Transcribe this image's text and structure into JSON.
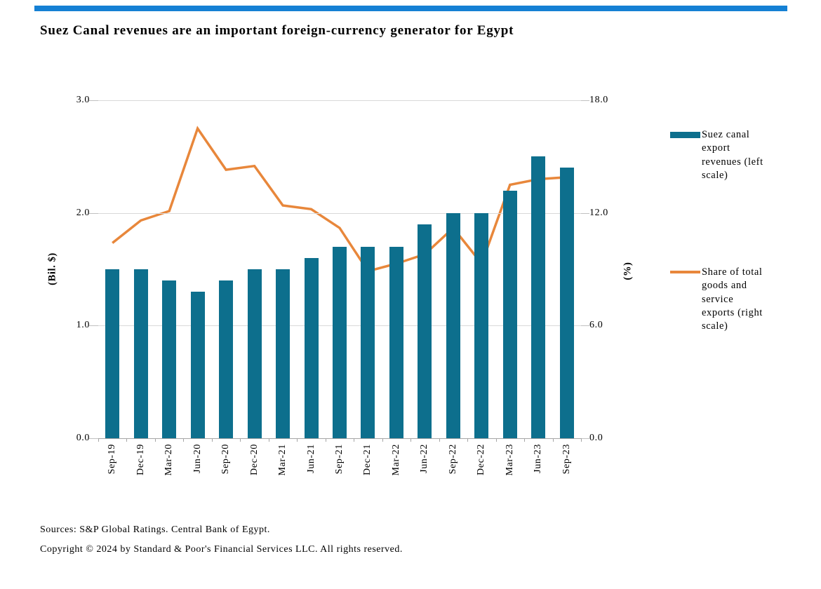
{
  "brand": {
    "banner_color": "#1580d4",
    "bar_color": "#0d6f8d",
    "line_color": "#e8873b"
  },
  "title": "Suez Canal revenues are an important foreign-currency generator for Egypt",
  "chart_data": {
    "type": "bar",
    "subtype": "bar-and-line-dual-axis",
    "categories": [
      "Sep-19",
      "Dec-19",
      "Mar-20",
      "Jun-20",
      "Sep-20",
      "Dec-20",
      "Mar-21",
      "Jun-21",
      "Sep-21",
      "Dec-21",
      "Mar-22",
      "Jun-22",
      "Sep-22",
      "Dec-22",
      "Mar-23",
      "Jun-23",
      "Sep-23"
    ],
    "series": [
      {
        "name": "Suez canal export revenues (left scale)",
        "type": "bar",
        "axis": "left",
        "color": "#0d6f8d",
        "values": [
          1.5,
          1.5,
          1.4,
          1.3,
          1.4,
          1.5,
          1.5,
          1.6,
          1.7,
          1.7,
          1.7,
          1.9,
          2.0,
          2.0,
          2.2,
          2.5,
          2.4
        ]
      },
      {
        "name": "Share of total goods and service exports (right scale)",
        "type": "line",
        "axis": "right",
        "color": "#e8873b",
        "values": [
          10.4,
          11.6,
          12.1,
          16.5,
          14.3,
          14.5,
          12.4,
          12.2,
          11.2,
          8.9,
          9.3,
          9.8,
          11.2,
          9.3,
          13.5,
          13.8,
          13.9
        ]
      }
    ],
    "left_axis": {
      "label": "(Bil. $)",
      "min": 0,
      "max": 3,
      "ticks": [
        "0.0",
        "1.0",
        "2.0",
        "3.0"
      ]
    },
    "right_axis": {
      "label": "(%)",
      "min": 0,
      "max": 18,
      "ticks": [
        "0.0",
        "6.0",
        "12.0",
        "18.0"
      ]
    },
    "grid": true,
    "legend_position": "right"
  },
  "legend": {
    "bars": {
      "name": "Suez canal export revenues (left scale)",
      "lines": [
        "Suez canal",
        "export",
        "revenues (left",
        "scale)"
      ]
    },
    "line": {
      "name": "Share of total goods and service exports (right scale)",
      "lines": [
        "Share of total",
        "goods and",
        "service",
        "exports (right",
        "scale)"
      ]
    }
  },
  "footer": {
    "sources": "Sources: S&P Global Ratings. Central Bank of Egypt.",
    "copyright": "Copyright © 2024 by Standard & Poor's Financial Services LLC. All rights reserved."
  }
}
